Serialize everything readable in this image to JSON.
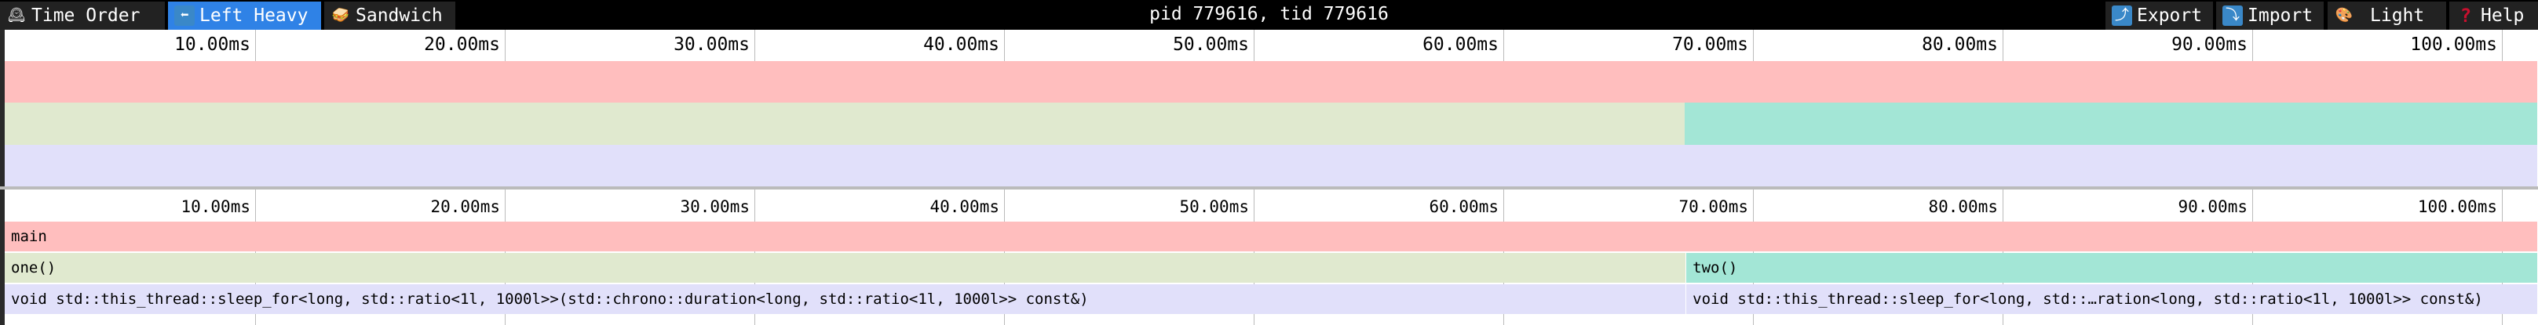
{
  "toolbar": {
    "tabs": [
      {
        "label": "Time Order",
        "icon": "mantel-clock-icon",
        "active": false
      },
      {
        "label": "Left Heavy",
        "icon": "left-arrow-icon",
        "active": true
      },
      {
        "label": "Sandwich",
        "icon": "sandwich-icon",
        "active": false
      }
    ],
    "title": "pid 779616, tid 779616",
    "actions": [
      {
        "label": "Export",
        "icon": "export-icon"
      },
      {
        "label": "Import",
        "icon": "import-icon"
      },
      {
        "label": "Light",
        "icon": "palette-icon"
      },
      {
        "label": "Help",
        "icon": "question-icon"
      }
    ]
  },
  "ruler": {
    "ticks": [
      "10.00ms",
      "20.00ms",
      "30.00ms",
      "40.00ms",
      "50.00ms",
      "60.00ms",
      "70.00ms",
      "80.00ms",
      "90.00ms",
      "100.00ms"
    ],
    "tick_values_ms": [
      10,
      20,
      30,
      40,
      50,
      60,
      70,
      80,
      90,
      100
    ]
  },
  "colors": {
    "accent": "#2f82e6",
    "main": "#ffbebe",
    "one": "#e0e9cf",
    "two": "#a3e6d6",
    "sleep": "#e1e0fa"
  },
  "frames": [
    {
      "name": "main",
      "depth": 0,
      "start_ms": 0,
      "end_ms": 101.4,
      "color": "#ffbebe"
    },
    {
      "name": "one()",
      "depth": 1,
      "start_ms": 0,
      "end_ms": 67.3,
      "color": "#e0e9cf"
    },
    {
      "name": "two()",
      "depth": 1,
      "start_ms": 67.3,
      "end_ms": 101.4,
      "color": "#a3e6d6"
    },
    {
      "name": "void std::this_thread::sleep_for<long, std::ratio<1l, 1000l>>(std::chrono::duration<long, std::ratio<1l, 1000l>> const&)",
      "depth": 2,
      "start_ms": 0,
      "end_ms": 67.3,
      "color": "#e1e0fa"
    },
    {
      "name": "void std::this_thread::sleep_for<long, std::…ration<long, std::ratio<1l, 1000l>> const&)",
      "depth": 2,
      "start_ms": 67.3,
      "end_ms": 101.4,
      "color": "#e1e0fa"
    }
  ]
}
